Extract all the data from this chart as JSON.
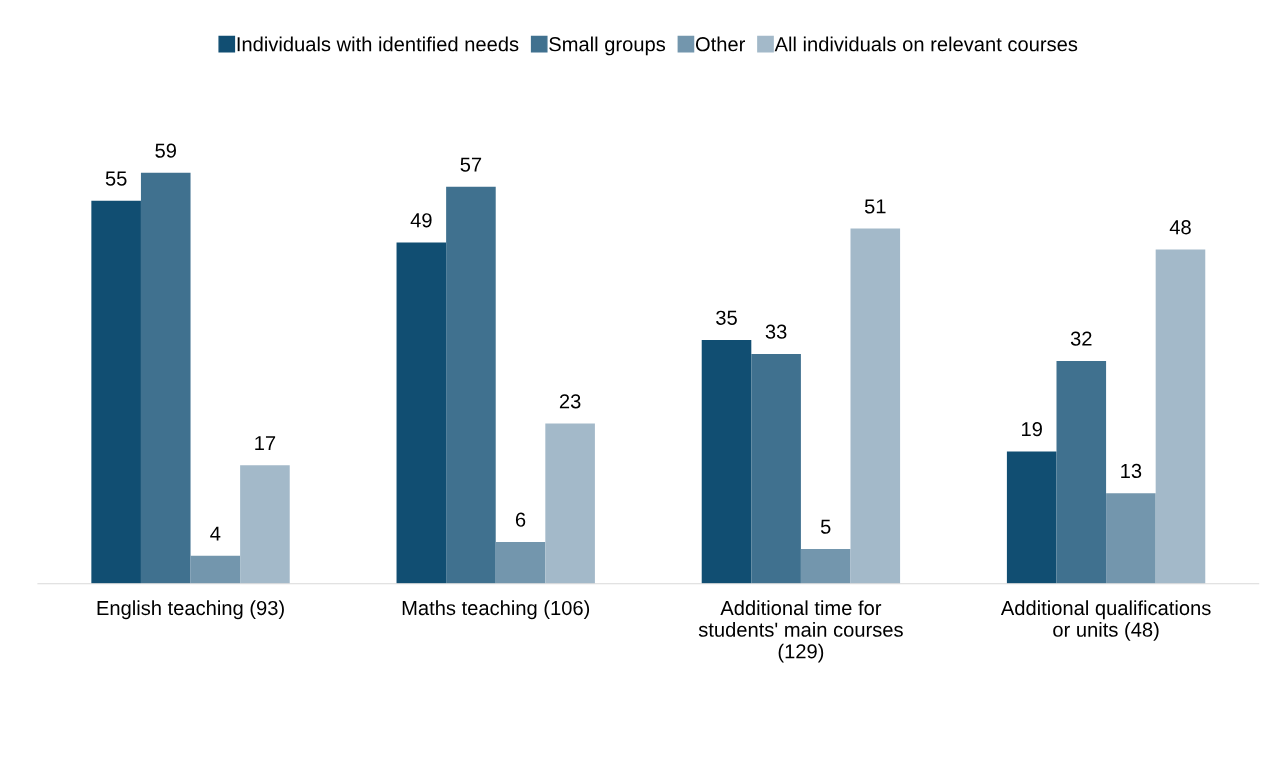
{
  "chart_data": {
    "type": "bar",
    "categories": [
      "English teaching (93)",
      "Maths teaching (106)",
      "Additional time for\nstudents' main courses\n(129)",
      "Additional qualifications\nor units (48)"
    ],
    "series": [
      {
        "name": "Individuals with identified needs",
        "color": "#114e72",
        "values": [
          55,
          49,
          35,
          19
        ]
      },
      {
        "name": "Small groups",
        "color": "#40718f",
        "values": [
          59,
          57,
          33,
          32
        ]
      },
      {
        "name": "Other",
        "color": "#7396ad",
        "values": [
          4,
          6,
          5,
          13
        ]
      },
      {
        "name": "All individuals on relevant courses",
        "color": "#a3b9c9",
        "values": [
          17,
          23,
          51,
          48
        ]
      }
    ],
    "data_labels": true,
    "legend": "top",
    "grid": false,
    "tick_labels": "x"
  }
}
